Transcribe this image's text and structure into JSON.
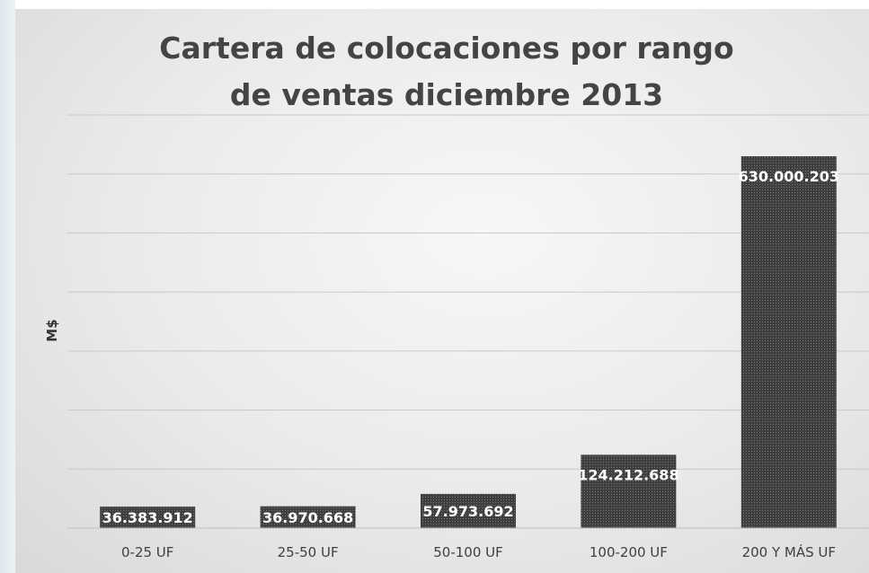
{
  "chart_data": {
    "type": "bar",
    "title": "Cartera de colocaciones por rango de ventas diciembre 2013",
    "title_lines": [
      "Cartera de colocaciones por rango",
      "de ventas diciembre 2013"
    ],
    "xlabel": "",
    "ylabel": "M$",
    "categories": [
      "0-25 UF",
      "25-50 UF",
      "50-100 UF",
      "100-200 UF",
      "200 Y MÁS UF"
    ],
    "values": [
      36383912,
      36970668,
      57973692,
      124212688,
      630000203
    ],
    "data_labels": [
      "36.383.912",
      "36.970.668",
      "57.973.692",
      "124.212.688",
      "630.000.203"
    ],
    "ylim": [
      0,
      700000000
    ],
    "grid": true,
    "legend": "none",
    "bar_color": "#3f3f3f",
    "bar_pattern_color": "#6e6e6e",
    "grid_color": "#c8c8c8",
    "title_color": "#444444"
  }
}
